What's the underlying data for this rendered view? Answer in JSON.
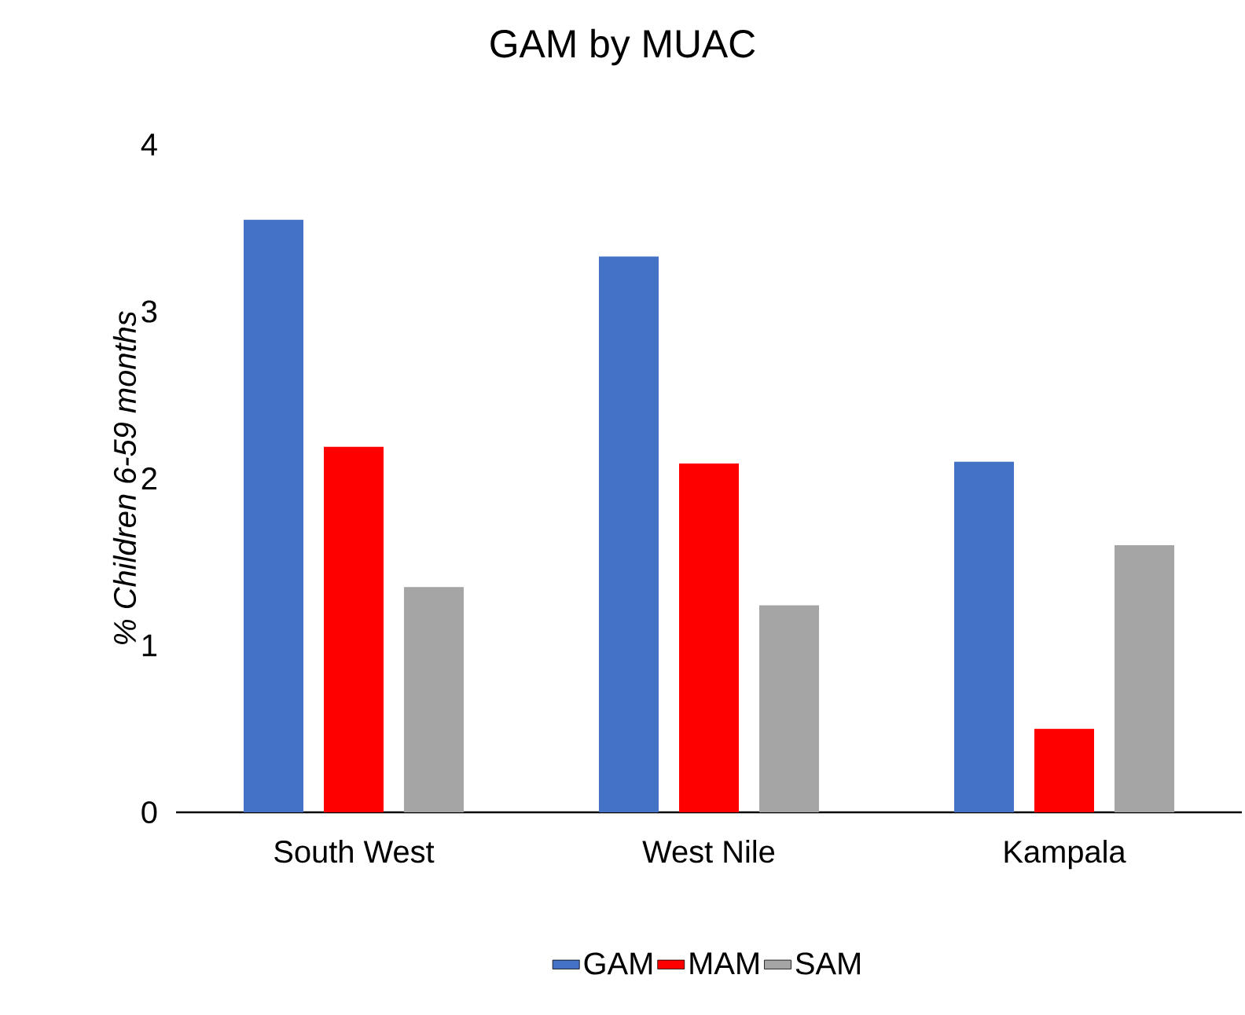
{
  "chart_data": {
    "type": "bar",
    "title": "GAM by MUAC",
    "ylabel": "% Children 6-59 months",
    "categories": [
      "South West",
      "West Nile",
      "Kampala"
    ],
    "series": [
      {
        "name": "GAM",
        "color": "#4472c4",
        "values": [
          3.55,
          3.33,
          2.1
        ]
      },
      {
        "name": "MAM",
        "color": "#ff0000",
        "values": [
          2.19,
          2.09,
          0.5
        ]
      },
      {
        "name": "SAM",
        "color": "#a5a5a5",
        "values": [
          1.35,
          1.24,
          1.6
        ]
      }
    ],
    "ylim": [
      0,
      4
    ],
    "yticks": [
      0,
      1,
      2,
      3,
      4
    ],
    "grid": false,
    "legend": "bottom"
  }
}
